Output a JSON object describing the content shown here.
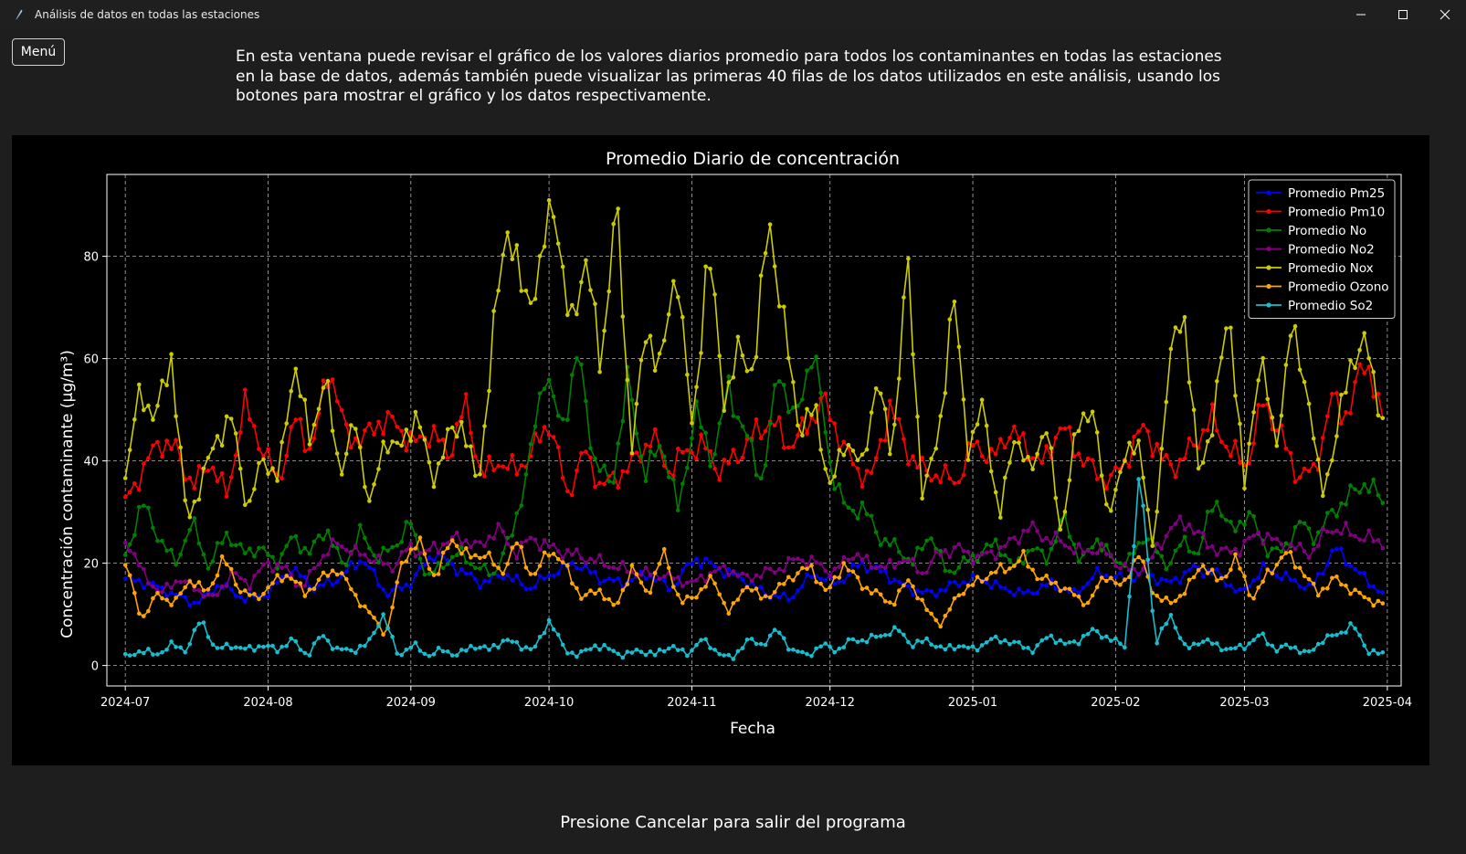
{
  "window": {
    "title": "Análisis de datos en todas las estaciones"
  },
  "menu_button": {
    "label": "Menú"
  },
  "intro_text": "En esta ventana puede revisar el gráfico de los valores diarios promedio para todos los contaminantes en todas las estaciones en la base de datos, además también puede visualizar las primeras 40 filas de los datos utilizados en este análisis, usando los botones para mostrar el gráfico y los datos respectivamente.",
  "footer_text": "Presione Cancelar para salir del programa",
  "chart_data": {
    "type": "line",
    "title": "Promedio Diario de concentración",
    "xlabel": "Fecha",
    "ylabel": "Concentración contaminante (µg/m³)",
    "ylim": [
      -4,
      96
    ],
    "xlim": [
      "2024-06-27",
      "2025-04-04"
    ],
    "yticks": [
      0,
      20,
      40,
      60,
      80
    ],
    "xticks": [
      "2024-07",
      "2024-08",
      "2024-09",
      "2024-10",
      "2024-11",
      "2024-12",
      "2025-01",
      "2025-02",
      "2025-03",
      "2025-04"
    ],
    "grid": true,
    "legend_position": "top-right",
    "x_start": "2024-07-01",
    "x_end": "2025-03-31",
    "series": [
      {
        "name": "Promedio Pm25",
        "color": "#0000ff",
        "anchors": [
          17,
          16,
          14,
          12,
          16,
          13,
          14,
          19,
          15,
          17,
          21,
          14,
          16,
          22,
          19,
          16,
          18,
          15,
          18,
          20,
          17,
          16,
          18,
          15,
          21,
          19,
          17,
          14,
          13,
          18,
          16,
          20,
          18,
          15,
          14,
          16,
          17,
          15,
          14,
          16,
          14,
          18,
          17,
          18,
          16,
          19,
          18,
          14,
          19,
          17,
          15,
          23,
          18,
          14
        ]
      },
      {
        "name": "Promedio Pm10",
        "color": "#ff0000",
        "anchors": [
          32,
          38,
          44,
          42,
          35,
          40,
          33,
          51,
          43,
          36,
          48,
          42,
          59,
          45,
          44,
          48,
          47,
          43,
          46,
          41,
          51,
          37,
          40,
          38,
          42,
          48,
          33,
          42,
          35,
          37,
          40,
          45,
          38,
          42,
          43,
          38,
          41,
          45,
          48,
          43,
          46,
          52,
          45,
          38,
          37,
          51,
          42,
          38,
          37,
          36,
          44,
          40,
          46,
          43,
          39,
          47,
          42,
          38,
          36,
          41,
          47,
          40,
          39,
          44,
          48,
          42,
          39,
          52,
          45,
          37,
          38,
          52,
          49,
          61,
          47
        ]
      },
      {
        "name": "Promedio No",
        "color": "#008000",
        "anchors": [
          21,
          32,
          25,
          20,
          28,
          19,
          26,
          22,
          23,
          20,
          25,
          22,
          27,
          19,
          26,
          21,
          23,
          28,
          17,
          20,
          22,
          19,
          18,
          25,
          38,
          58,
          46,
          61,
          40,
          35,
          56,
          37,
          44,
          30,
          50,
          40,
          54,
          45,
          36,
          58,
          47,
          63,
          40,
          30,
          31,
          25,
          23,
          20,
          26,
          18,
          20,
          22,
          24,
          19,
          23,
          21,
          29,
          20,
          25,
          20,
          21,
          26,
          19,
          24,
          22,
          33,
          26,
          30,
          23,
          22,
          28,
          25,
          30,
          33,
          36,
          32
        ]
      },
      {
        "name": "Promedio No2",
        "color": "#800080",
        "anchors": [
          25,
          18,
          14,
          17,
          15,
          13,
          18,
          16,
          20,
          19,
          15,
          21,
          24,
          22,
          21,
          19,
          23,
          22,
          24,
          25,
          23,
          27,
          22,
          25,
          23,
          22,
          21,
          20,
          19,
          18,
          18,
          17,
          16,
          18,
          19,
          17,
          18,
          19,
          21,
          20,
          18,
          22,
          20,
          19,
          21,
          18,
          22,
          23,
          21,
          22,
          24,
          27,
          25,
          24,
          22,
          23,
          20,
          18,
          21,
          27,
          28,
          24,
          22,
          23,
          26,
          24,
          23,
          22,
          27,
          26,
          25,
          24
        ]
      },
      {
        "name": "Promedio Nox",
        "color": "#cccc00",
        "anchors": [
          37,
          54,
          48,
          61,
          28,
          36,
          45,
          48,
          30,
          41,
          36,
          60,
          44,
          56,
          38,
          47,
          31,
          45,
          42,
          50,
          36,
          44,
          48,
          34,
          65,
          88,
          70,
          77,
          92,
          64,
          81,
          58,
          91,
          43,
          65,
          59,
          79,
          44,
          83,
          52,
          61,
          58,
          88,
          65,
          46,
          50,
          34,
          45,
          38,
          56,
          41,
          79,
          33,
          44,
          72,
          42,
          51,
          28,
          46,
          37,
          48,
          26,
          45,
          52,
          30,
          38,
          46,
          22,
          57,
          71,
          37,
          49,
          70,
          34,
          62,
          42,
          65,
          56,
          33,
          45,
          61,
          62,
          48
        ]
      },
      {
        "name": "Promedio Ozono",
        "color": "#ffa500",
        "anchors": [
          20,
          9,
          14,
          12,
          17,
          14,
          21,
          15,
          13,
          16,
          18,
          14,
          17,
          19,
          14,
          10,
          6,
          21,
          24,
          17,
          25,
          21,
          22,
          18,
          24,
          17,
          23,
          19,
          13,
          15,
          11,
          19,
          14,
          22,
          12,
          14,
          17,
          10,
          16,
          13,
          15,
          18,
          19,
          14,
          20,
          16,
          14,
          12,
          17,
          11,
          8,
          14,
          16,
          18,
          19,
          21,
          17,
          16,
          14,
          12,
          18,
          15,
          22,
          14,
          12,
          15,
          20,
          16,
          21,
          13,
          18,
          22,
          19,
          14,
          17,
          15,
          13,
          12
        ]
      },
      {
        "name": "Promedio So2",
        "color": "#17becf",
        "anchors": [
          1.5,
          3,
          2,
          4,
          3,
          9,
          3,
          4,
          3,
          4,
          3,
          5,
          2,
          6,
          3,
          3,
          4,
          10,
          2,
          4,
          2,
          3,
          2,
          4,
          3,
          5,
          4,
          3,
          9,
          3,
          2,
          4,
          3,
          2,
          3,
          2,
          4,
          2,
          5,
          3,
          1,
          5,
          4,
          7,
          3,
          2,
          4,
          3,
          5,
          5,
          6,
          7,
          4,
          5,
          3,
          4,
          3,
          5,
          5,
          4,
          3,
          6,
          4,
          5,
          7,
          5,
          4,
          38,
          4,
          10,
          3,
          5,
          4,
          3,
          4,
          6,
          3,
          4,
          2,
          5,
          6,
          8,
          3,
          2
        ]
      }
    ]
  }
}
